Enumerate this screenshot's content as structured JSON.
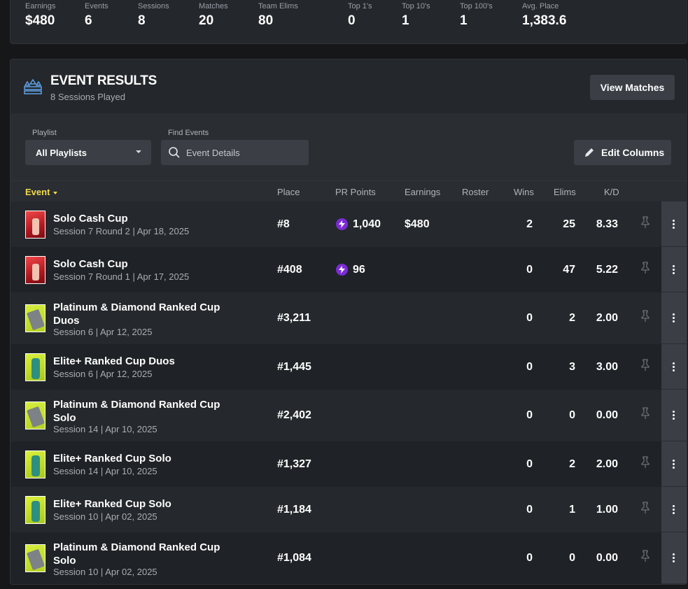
{
  "stats": [
    {
      "label": "Earnings",
      "value": "$480"
    },
    {
      "label": "Events",
      "value": "6"
    },
    {
      "label": "Sessions",
      "value": "8"
    },
    {
      "label": "Matches",
      "value": "20"
    },
    {
      "label": "Team Elims",
      "value": "80"
    },
    {
      "label": "Top 1's",
      "value": "0"
    },
    {
      "label": "Top 10's",
      "value": "1"
    },
    {
      "label": "Top 100's",
      "value": "1"
    },
    {
      "label": "Avg. Place",
      "value": "1,383.6"
    }
  ],
  "panel": {
    "title": "EVENT RESULTS",
    "subtitle": "8 Sessions Played",
    "view_matches_label": "View Matches",
    "trophy_icon": "trophy-icon"
  },
  "filters": {
    "playlist_label": "Playlist",
    "playlist_value": "All Playlists",
    "find_label": "Find Events",
    "search_placeholder": "Event Details",
    "edit_columns_label": "Edit Columns"
  },
  "columns": {
    "event": "Event",
    "place": "Place",
    "pr_points": "PR Points",
    "earnings": "Earnings",
    "roster": "Roster",
    "wins": "Wins",
    "elims": "Elims",
    "kd": "K/D"
  },
  "rows": [
    {
      "name": "Solo Cash Cup",
      "session": "Session 7 Round 2 | Apr 18, 2025",
      "place": "#8",
      "pr": "1,040",
      "earnings": "$480",
      "wins": "2",
      "elims": "25",
      "kd": "8.33",
      "thumb": "cash"
    },
    {
      "name": "Solo Cash Cup",
      "session": "Session 7 Round 1 | Apr 17, 2025",
      "place": "#408",
      "pr": "96",
      "earnings": "",
      "wins": "0",
      "elims": "47",
      "kd": "5.22",
      "thumb": "cash"
    },
    {
      "name": "Platinum & Diamond Ranked Cup Duos",
      "session": "Session 6 | Apr 12, 2025",
      "place": "#3,211",
      "pr": "",
      "earnings": "",
      "wins": "0",
      "elims": "2",
      "kd": "2.00",
      "thumb": "ranked"
    },
    {
      "name": "Elite+ Ranked Cup Duos",
      "session": "Session 6 | Apr 12, 2025",
      "place": "#1,445",
      "pr": "",
      "earnings": "",
      "wins": "0",
      "elims": "3",
      "kd": "3.00",
      "thumb": "elite"
    },
    {
      "name": "Platinum & Diamond Ranked Cup Solo",
      "session": "Session 14 | Apr 10, 2025",
      "place": "#2,402",
      "pr": "",
      "earnings": "",
      "wins": "0",
      "elims": "0",
      "kd": "0.00",
      "thumb": "ranked"
    },
    {
      "name": "Elite+ Ranked Cup Solo",
      "session": "Session 14 | Apr 10, 2025",
      "place": "#1,327",
      "pr": "",
      "earnings": "",
      "wins": "0",
      "elims": "2",
      "kd": "2.00",
      "thumb": "elite"
    },
    {
      "name": "Elite+ Ranked Cup Solo",
      "session": "Session 10 | Apr 02, 2025",
      "place": "#1,184",
      "pr": "",
      "earnings": "",
      "wins": "0",
      "elims": "1",
      "kd": "1.00",
      "thumb": "elite"
    },
    {
      "name": "Platinum & Diamond Ranked Cup Solo",
      "session": "Session 10 | Apr 02, 2025",
      "place": "#1,084",
      "pr": "",
      "earnings": "",
      "wins": "0",
      "elims": "0",
      "kd": "0.00",
      "thumb": "ranked"
    }
  ],
  "colors": {
    "accent": "#f0d94a",
    "pr_badge": "#7b2bd6",
    "panel_bg": "#1f2226"
  }
}
